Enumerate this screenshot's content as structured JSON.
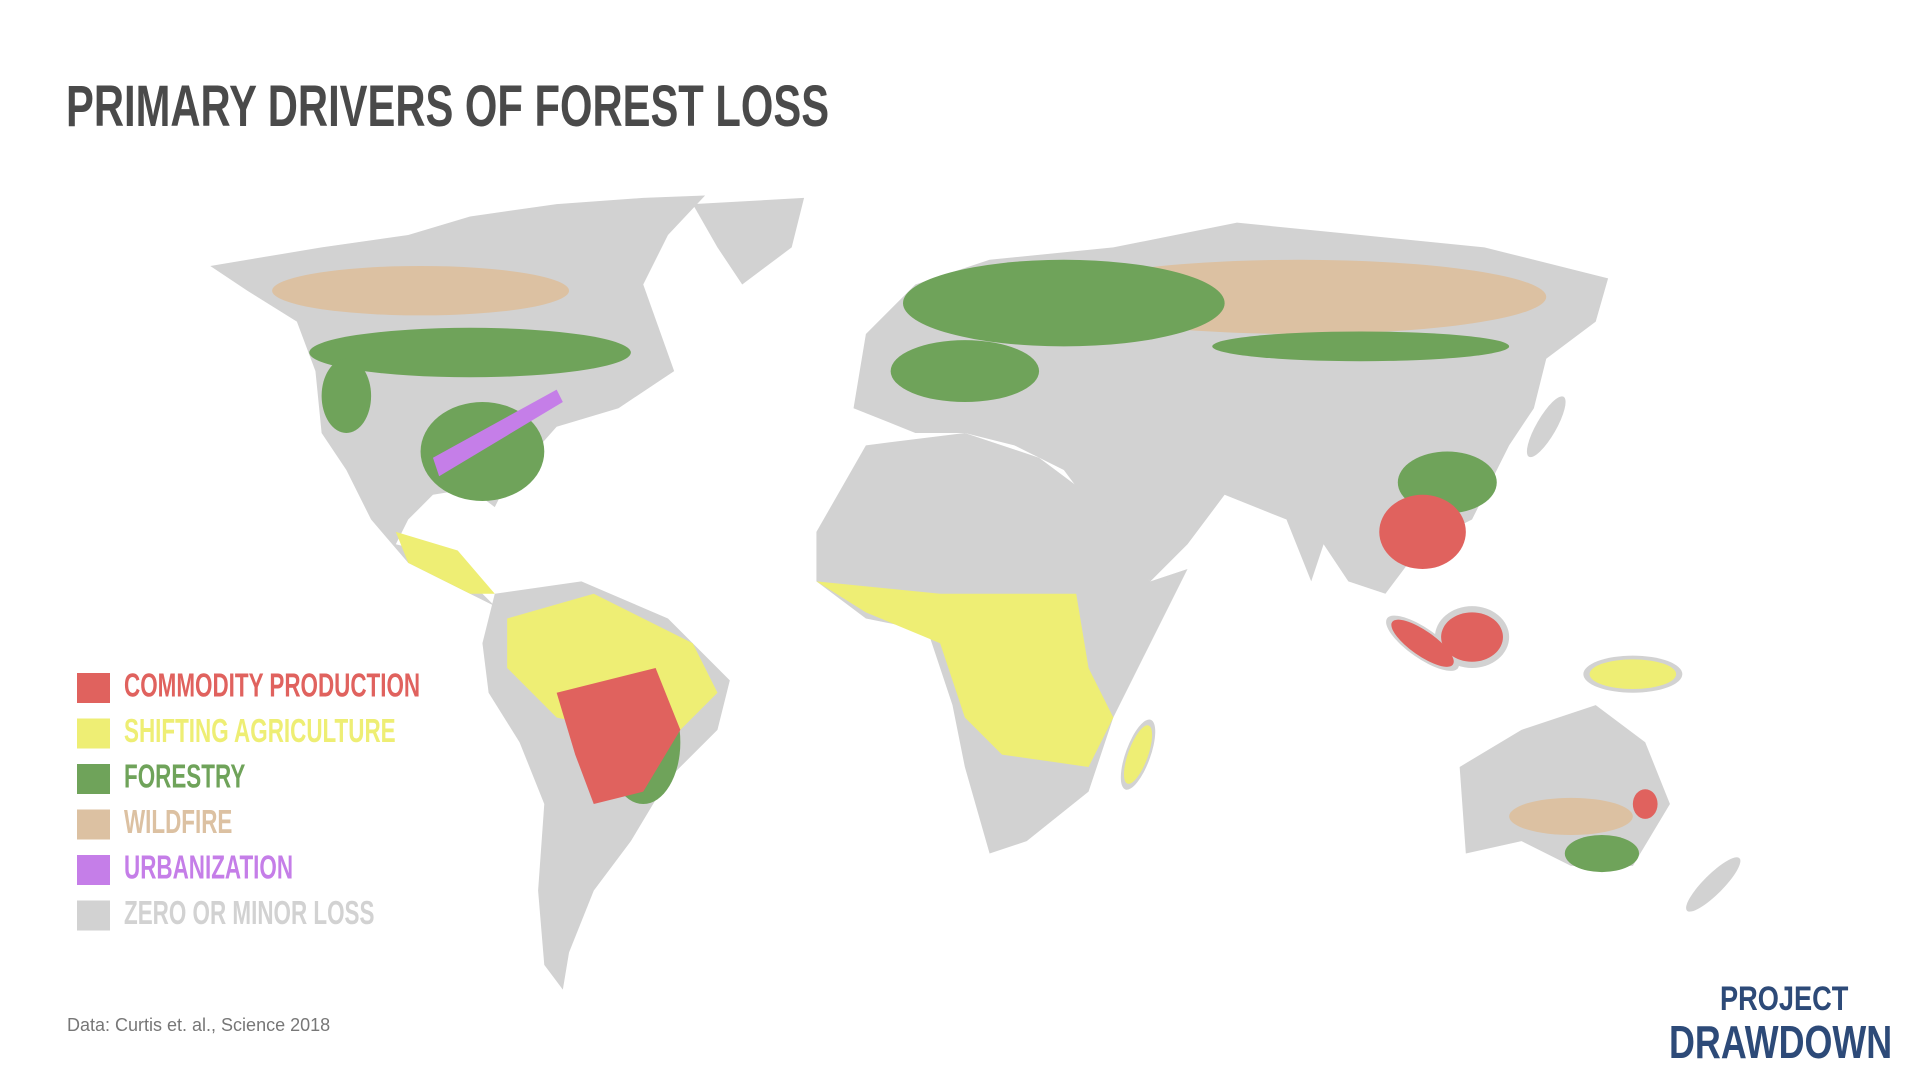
{
  "header": {
    "title": "PRIMARY DRIVERS OF FOREST LOSS"
  },
  "legend": {
    "items": [
      {
        "label": "COMMODITY PRODUCTION",
        "color": "#e0625e"
      },
      {
        "label": "SHIFTING AGRICULTURE",
        "color": "#eeee74"
      },
      {
        "label": "FORESTRY",
        "color": "#6fa35a"
      },
      {
        "label": "WILDFIRE",
        "color": "#dcc1a2"
      },
      {
        "label": "URBANIZATION",
        "color": "#c57ee8"
      },
      {
        "label": "ZERO OR MINOR LOSS",
        "color": "#d2d2d2"
      }
    ]
  },
  "footer": {
    "source": "Data: Curtis et. al., Science 2018",
    "logo": [
      "PROJECT",
      "DRAWDOWN"
    ]
  }
}
